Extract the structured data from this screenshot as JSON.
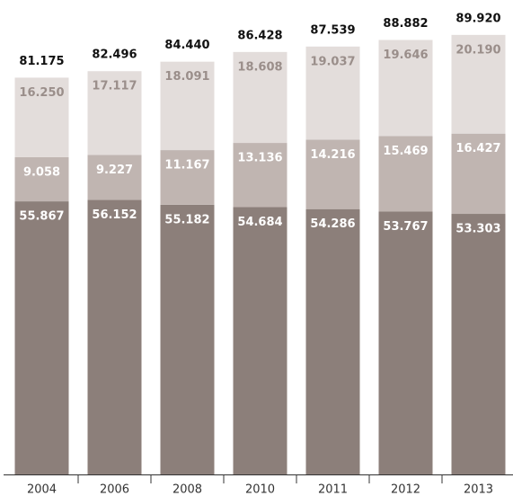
{
  "chart_data": {
    "type": "stacked-bar",
    "categories": [
      "2004",
      "2006",
      "2008",
      "2010",
      "2011",
      "2012",
      "2013"
    ],
    "series": [
      {
        "color": "#8c7f7a",
        "label_color": "#ffffff",
        "values": [
          55.867,
          56.152,
          55.182,
          54.684,
          54.286,
          53.767,
          53.303
        ],
        "value_labels": [
          "55.867",
          "56.152",
          "55.182",
          "54.684",
          "54.286",
          "53.767",
          "53.303"
        ]
      },
      {
        "color": "#c0b5b1",
        "label_color": "#ffffff",
        "values": [
          9.058,
          9.227,
          11.167,
          13.136,
          14.216,
          15.469,
          16.427
        ],
        "value_labels": [
          "9.058",
          "9.227",
          "11.167",
          "13.136",
          "14.216",
          "15.469",
          "16.427"
        ]
      },
      {
        "color": "#e3dddb",
        "label_color": "#9a8e8a",
        "values": [
          16.25,
          17.117,
          18.091,
          18.608,
          19.037,
          19.646,
          20.19
        ],
        "value_labels": [
          "16.250",
          "17.117",
          "18.091",
          "18.608",
          "19.037",
          "19.646",
          "20.190"
        ]
      }
    ],
    "totals": [
      81.175,
      82.496,
      84.44,
      86.428,
      87.539,
      88.882,
      89.92
    ],
    "total_labels": [
      "81.175",
      "82.496",
      "84.440",
      "86.428",
      "87.539",
      "88.882",
      "89.920"
    ]
  }
}
